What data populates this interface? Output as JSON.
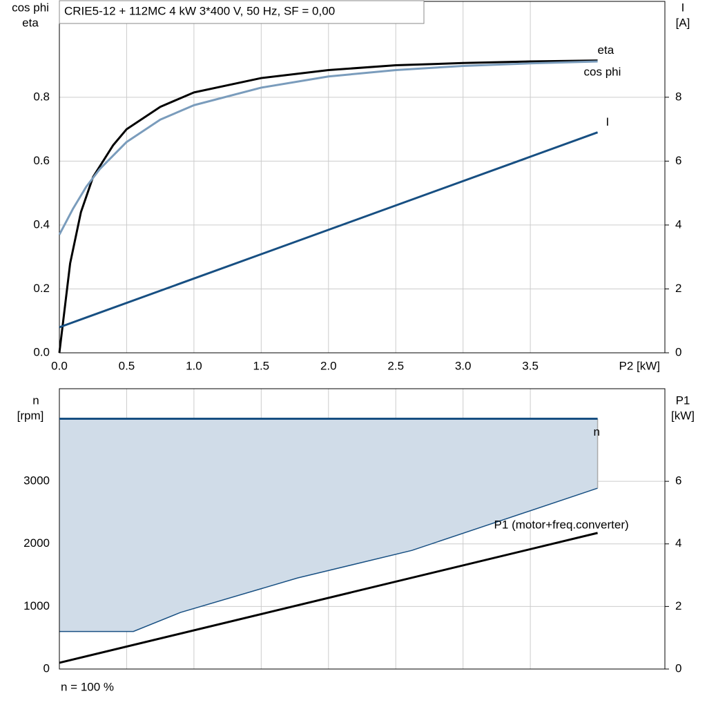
{
  "chart_data": [
    {
      "type": "line",
      "title": "CRIE5-12 + 112MC   4 kW   3*400 V, 50 Hz, SF = 0,00",
      "ylabel": [
        "cos phi",
        "eta"
      ],
      "y2label": [
        "I",
        "[A]"
      ],
      "xlabel": "P2 [kW]",
      "xlim": [
        0,
        4.5
      ],
      "xticks": [
        {
          "value": 0,
          "label": "0.0"
        },
        0.5,
        {
          "value": 1,
          "label": "1.0"
        },
        1.5,
        {
          "value": 2,
          "label": "2.0"
        },
        2.5,
        {
          "value": 3,
          "label": "3.0"
        },
        3.5
      ],
      "ylim": [
        0,
        1.1
      ],
      "yticks": [
        {
          "value": 0,
          "label": "0.0"
        },
        0.2,
        0.4,
        0.6,
        0.8
      ],
      "y2lim": [
        0,
        11
      ],
      "y2ticks": [
        0,
        2,
        4,
        6,
        8
      ],
      "grid": true,
      "series": [
        {
          "name": "eta",
          "color": "#000000",
          "axis": "y",
          "x": [
            0,
            0.08,
            0.16,
            0.25,
            0.4,
            0.5,
            0.75,
            1.0,
            1.5,
            2.0,
            2.5,
            3.0,
            3.5,
            4.0
          ],
          "values": [
            0,
            0.28,
            0.44,
            0.55,
            0.65,
            0.7,
            0.77,
            0.815,
            0.86,
            0.885,
            0.9,
            0.907,
            0.912,
            0.915
          ]
        },
        {
          "name": "cos phi",
          "color": "#7a9cbc",
          "axis": "y",
          "x": [
            0,
            0.1,
            0.2,
            0.3,
            0.5,
            0.75,
            1.0,
            1.5,
            2.0,
            2.5,
            3.0,
            3.5,
            4.0
          ],
          "values": [
            0.37,
            0.45,
            0.52,
            0.575,
            0.66,
            0.73,
            0.775,
            0.83,
            0.865,
            0.885,
            0.898,
            0.906,
            0.912
          ]
        },
        {
          "name": "I",
          "color": "#174f82",
          "axis": "y2",
          "x": [
            0,
            4.0
          ],
          "values": [
            0.8,
            6.9
          ]
        }
      ]
    },
    {
      "type": "line",
      "ylabel": [
        "n",
        "[rpm]"
      ],
      "y2label": [
        "P1",
        "[kW]"
      ],
      "footer": "n = 100 %",
      "xlim": [
        0,
        4.5
      ],
      "ylim": [
        0,
        4480
      ],
      "yticks": [
        0,
        1000,
        2000,
        3000
      ],
      "y2lim": [
        0,
        8.96
      ],
      "y2ticks": [
        0,
        2,
        4,
        6
      ],
      "grid": true,
      "range": {
        "color": "#d0dce8",
        "edge_color": "#174f82",
        "x": [
          0,
          0.55,
          0.9,
          1.77,
          2.62,
          4.0
        ],
        "lower": [
          600,
          600,
          904,
          1455,
          1896,
          2890
        ],
        "upper": [
          4000,
          4000,
          4000,
          4000,
          4000,
          4000
        ]
      },
      "series": [
        {
          "name": "n",
          "color": "#174f82",
          "axis": "y",
          "x": [
            0,
            4.0
          ],
          "values": [
            4000,
            4000
          ]
        },
        {
          "name": "P1 (motor+freq.converter)",
          "color": "#000000",
          "axis": "y2",
          "x": [
            0,
            4.0
          ],
          "values": [
            0.2,
            4.35
          ]
        }
      ]
    }
  ]
}
